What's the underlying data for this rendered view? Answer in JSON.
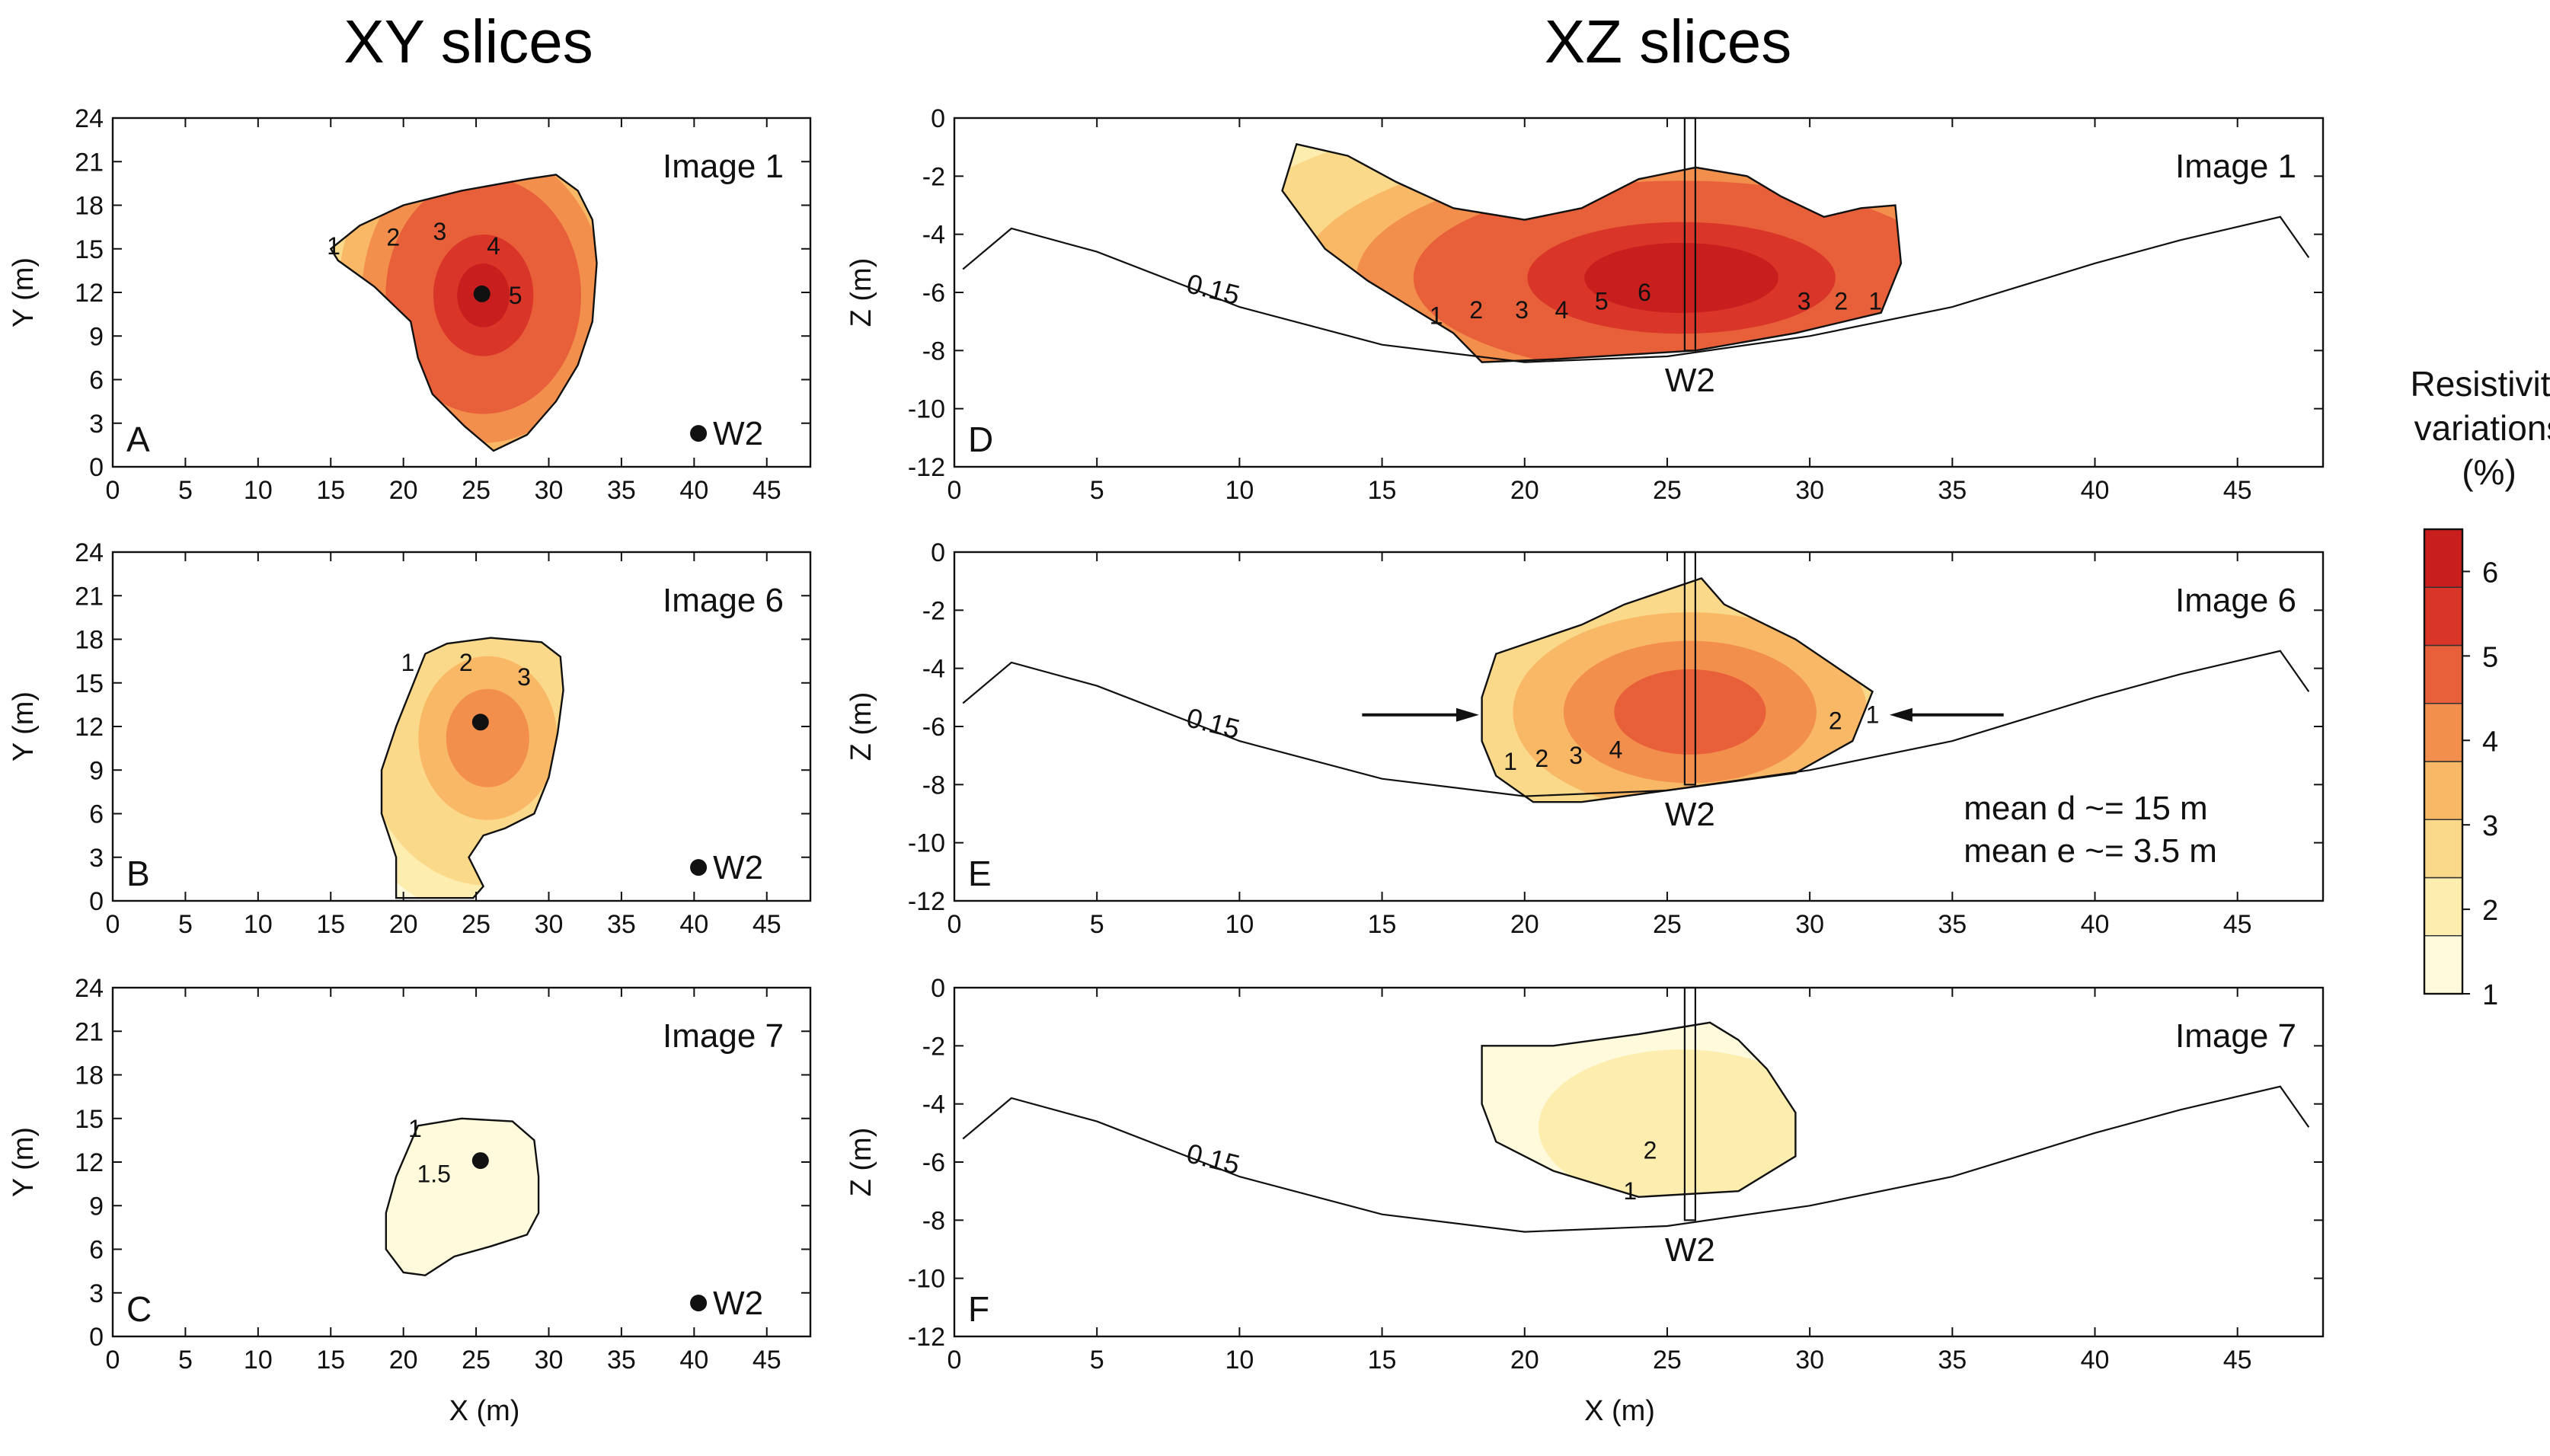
{
  "figure": {
    "xy_heading": "XY slices",
    "xz_heading": "XZ slices"
  },
  "colorbar": {
    "title_lines": [
      "Resistivity",
      "variations",
      "(%)"
    ],
    "ticks": [
      "1",
      "2",
      "3",
      "4",
      "5",
      "6"
    ],
    "min": 1,
    "max": 6.5,
    "colors": [
      "#fffadc",
      "#fdeeb0",
      "#fbd98a",
      "#f8b866",
      "#f38f4d",
      "#e8603a",
      "#d93528",
      "#c81e1e"
    ]
  },
  "chart_data": [
    {
      "id": "A",
      "type": "contour",
      "title": "Image 1",
      "panel_label": "A",
      "xlabel": "",
      "ylabel": "Y (m)",
      "xlim": [
        0,
        48
      ],
      "ylim": [
        0,
        24
      ],
      "xticks": [
        "0",
        "5",
        "10",
        "15",
        "20",
        "25",
        "30",
        "35",
        "40",
        "45"
      ],
      "yticks": [
        "0",
        "3",
        "6",
        "9",
        "12",
        "15",
        "18",
        "21",
        "24"
      ],
      "outline": [
        [
          15,
          15
        ],
        [
          17,
          16.6
        ],
        [
          20,
          18
        ],
        [
          24,
          19
        ],
        [
          28.5,
          19.8
        ],
        [
          30.5,
          20.1
        ],
        [
          32,
          19
        ],
        [
          33,
          17
        ],
        [
          33.3,
          14
        ],
        [
          33,
          10
        ],
        [
          32,
          7
        ],
        [
          30.5,
          4.5
        ],
        [
          28.5,
          2.2
        ],
        [
          26.2,
          1.1
        ],
        [
          24.2,
          2.8
        ],
        [
          22,
          5
        ],
        [
          21,
          7.5
        ],
        [
          20.5,
          10
        ],
        [
          18,
          12.4
        ],
        [
          15.5,
          14.2
        ]
      ],
      "center": [
        25.5,
        11.8
      ],
      "extent": [
        7,
        8.5
      ],
      "peak": 6.2,
      "contour_labels": [
        {
          "text": "1",
          "x": 15.2,
          "y": 15.2
        },
        {
          "text": "2",
          "x": 19.3,
          "y": 15.8
        },
        {
          "text": "3",
          "x": 22.5,
          "y": 16.2
        },
        {
          "text": "4",
          "x": 26.2,
          "y": 15.2
        },
        {
          "text": "5",
          "x": 27.7,
          "y": 11.8
        }
      ],
      "well_marker": [
        25.4,
        11.9
      ],
      "legend_marker": "W2",
      "well_line": false
    },
    {
      "id": "B",
      "type": "contour",
      "title": "Image 6",
      "panel_label": "B",
      "xlabel": "",
      "ylabel": "Y (m)",
      "xlim": [
        0,
        48
      ],
      "ylim": [
        0,
        24
      ],
      "xticks": [
        "0",
        "5",
        "10",
        "15",
        "20",
        "25",
        "30",
        "35",
        "40",
        "45"
      ],
      "yticks": [
        "0",
        "3",
        "6",
        "9",
        "12",
        "15",
        "18",
        "21",
        "24"
      ],
      "outline": [
        [
          19.5,
          0.2
        ],
        [
          19.5,
          3
        ],
        [
          18.5,
          6
        ],
        [
          18.5,
          9
        ],
        [
          19.5,
          12
        ],
        [
          20.5,
          14.5
        ],
        [
          21.5,
          17
        ],
        [
          23,
          17.7
        ],
        [
          26,
          18.1
        ],
        [
          29.5,
          17.8
        ],
        [
          30.8,
          16.8
        ],
        [
          31,
          14.5
        ],
        [
          30.6,
          11.5
        ],
        [
          30,
          8.5
        ],
        [
          29,
          6
        ],
        [
          27,
          5
        ],
        [
          25.5,
          4.5
        ],
        [
          24.5,
          3
        ],
        [
          25.5,
          1
        ],
        [
          24.8,
          0.2
        ],
        [
          22.5,
          0.2
        ]
      ],
      "center": [
        25.8,
        11.2
      ],
      "extent": [
        5.5,
        6.5
      ],
      "peak": 4.4,
      "contour_labels": [
        {
          "text": "1",
          "x": 20.3,
          "y": 16.4
        },
        {
          "text": "2",
          "x": 24.3,
          "y": 16.4
        },
        {
          "text": "3",
          "x": 28.3,
          "y": 15.4
        }
      ],
      "well_marker": [
        25.3,
        12.3
      ],
      "legend_marker": "W2",
      "well_line": false
    },
    {
      "id": "C",
      "type": "contour",
      "title": "Image 7",
      "panel_label": "C",
      "xlabel": "X (m)",
      "ylabel": "Y (m)",
      "xlim": [
        0,
        48
      ],
      "ylim": [
        0,
        24
      ],
      "xticks": [
        "0",
        "5",
        "10",
        "15",
        "20",
        "25",
        "30",
        "35",
        "40",
        "45"
      ],
      "yticks": [
        "0",
        "3",
        "6",
        "9",
        "12",
        "15",
        "18",
        "21",
        "24"
      ],
      "outline": [
        [
          21,
          14.5
        ],
        [
          24,
          15
        ],
        [
          27.5,
          14.8
        ],
        [
          29,
          13.5
        ],
        [
          29.3,
          11
        ],
        [
          29.3,
          8.5
        ],
        [
          28.5,
          7
        ],
        [
          26,
          6.2
        ],
        [
          23.5,
          5.5
        ],
        [
          21.5,
          4.2
        ],
        [
          20,
          4.4
        ],
        [
          18.8,
          6
        ],
        [
          18.8,
          8.5
        ],
        [
          19.5,
          11
        ]
      ],
      "center": [
        24,
        10
      ],
      "extent": [
        5,
        5
      ],
      "peak": 1.8,
      "contour_labels": [
        {
          "text": "1",
          "x": 20.8,
          "y": 14.3
        },
        {
          "text": "1.5",
          "x": 22.1,
          "y": 11.2
        }
      ],
      "well_marker": [
        25.3,
        12.1
      ],
      "legend_marker": "W2",
      "well_line": false
    },
    {
      "id": "D",
      "type": "contour",
      "title": "Image 1",
      "panel_label": "D",
      "xlabel": "",
      "ylabel": "Z (m)",
      "xlim": [
        0,
        48
      ],
      "ylim": [
        -12,
        0
      ],
      "xticks": [
        "0",
        "5",
        "10",
        "15",
        "20",
        "25",
        "30",
        "35",
        "40",
        "45"
      ],
      "yticks": [
        "0",
        "-2",
        "-4",
        "-6",
        "-8",
        "-10",
        "-12"
      ],
      "outline": [
        [
          12,
          -0.9
        ],
        [
          13.8,
          -1.3
        ],
        [
          15.5,
          -2.2
        ],
        [
          17.5,
          -3.1
        ],
        [
          20,
          -3.5
        ],
        [
          22,
          -3.1
        ],
        [
          24,
          -2.1
        ],
        [
          26,
          -1.7
        ],
        [
          27.8,
          -2
        ],
        [
          29,
          -2.7
        ],
        [
          30.5,
          -3.4
        ],
        [
          31.8,
          -3.1
        ],
        [
          33,
          -3
        ],
        [
          33.2,
          -5
        ],
        [
          32.5,
          -6.7
        ],
        [
          29.5,
          -7.4
        ],
        [
          26,
          -8
        ],
        [
          21,
          -8.3
        ],
        [
          18.5,
          -8.4
        ],
        [
          17.5,
          -7.4
        ],
        [
          16,
          -6.5
        ],
        [
          14.5,
          -5.6
        ],
        [
          13,
          -4.5
        ],
        [
          11.5,
          -2.5
        ]
      ],
      "center": [
        25.5,
        -5.5
      ],
      "extent": [
        9,
        3.2
      ],
      "peak": 6.5,
      "secondary": {
        "center": [
          13.5,
          -2.8
        ],
        "extent": [
          2.5,
          1.3
        ],
        "peak": 3.0
      },
      "contour_labels": [
        {
          "text": "1",
          "x": 16.9,
          "y": -6.8
        },
        {
          "text": "2",
          "x": 18.3,
          "y": -6.6
        },
        {
          "text": "3",
          "x": 19.9,
          "y": -6.6
        },
        {
          "text": "4",
          "x": 21.3,
          "y": -6.6
        },
        {
          "text": "5",
          "x": 22.7,
          "y": -6.3
        },
        {
          "text": "6",
          "x": 24.2,
          "y": -6
        },
        {
          "text": "3",
          "x": 29.8,
          "y": -6.3
        },
        {
          "text": "2",
          "x": 31.1,
          "y": -6.3
        },
        {
          "text": "1",
          "x": 32.3,
          "y": -6.3
        }
      ],
      "well_label": "W2",
      "well_line": true,
      "isoline_label": "0.15",
      "isoline": [
        [
          0.3,
          -5.2
        ],
        [
          2,
          -3.8
        ],
        [
          5,
          -4.6
        ],
        [
          10,
          -6.5
        ],
        [
          15,
          -7.8
        ],
        [
          20,
          -8.4
        ],
        [
          25,
          -8.2
        ],
        [
          30,
          -7.5
        ],
        [
          35,
          -6.5
        ],
        [
          40,
          -5
        ],
        [
          43,
          -4.2
        ],
        [
          46.5,
          -3.4
        ],
        [
          47.5,
          -4.8
        ]
      ],
      "arrows": false,
      "annotations": []
    },
    {
      "id": "E",
      "type": "contour",
      "title": "Image 6",
      "panel_label": "E",
      "xlabel": "",
      "ylabel": "Z (m)",
      "xlim": [
        0,
        48
      ],
      "ylim": [
        -12,
        0
      ],
      "xticks": [
        "0",
        "5",
        "10",
        "15",
        "20",
        "25",
        "30",
        "35",
        "40",
        "45"
      ],
      "yticks": [
        "0",
        "-2",
        "-4",
        "-6",
        "-8",
        "-10",
        "-12"
      ],
      "outline": [
        [
          19,
          -3.5
        ],
        [
          22,
          -2.5
        ],
        [
          23.5,
          -1.8
        ],
        [
          26.2,
          -0.9
        ],
        [
          27,
          -1.8
        ],
        [
          29.5,
          -3
        ],
        [
          32.2,
          -4.8
        ],
        [
          31.5,
          -6.5
        ],
        [
          29.5,
          -7.6
        ],
        [
          26.5,
          -8
        ],
        [
          22,
          -8.6
        ],
        [
          20.3,
          -8.6
        ],
        [
          19,
          -7.7
        ],
        [
          18.5,
          -6.5
        ],
        [
          18.5,
          -5
        ]
      ],
      "center": [
        25.8,
        -5.5
      ],
      "extent": [
        5.8,
        3.2
      ],
      "peak": 4.9,
      "contour_labels": [
        {
          "text": "1",
          "x": 19.5,
          "y": -7.2
        },
        {
          "text": "2",
          "x": 20.6,
          "y": -7.1
        },
        {
          "text": "3",
          "x": 21.8,
          "y": -7
        },
        {
          "text": "4",
          "x": 23.2,
          "y": -6.8
        },
        {
          "text": "2",
          "x": 30.9,
          "y": -5.8
        },
        {
          "text": "1",
          "x": 32.2,
          "y": -5.6
        }
      ],
      "well_label": "W2",
      "well_line": true,
      "isoline_label": "0.15",
      "isoline": [
        [
          0.3,
          -5.2
        ],
        [
          2,
          -3.8
        ],
        [
          5,
          -4.6
        ],
        [
          10,
          -6.5
        ],
        [
          15,
          -7.8
        ],
        [
          20,
          -8.4
        ],
        [
          25,
          -8.2
        ],
        [
          30,
          -7.5
        ],
        [
          35,
          -6.5
        ],
        [
          40,
          -5
        ],
        [
          43,
          -4.2
        ],
        [
          46.5,
          -3.4
        ],
        [
          47.5,
          -4.8
        ]
      ],
      "arrows": true,
      "annotations": [
        "mean d ~= 15 m",
        "mean e ~= 3.5 m"
      ]
    },
    {
      "id": "F",
      "type": "contour",
      "title": "Image 7",
      "panel_label": "F",
      "xlabel": "X (m)",
      "ylabel": "Z (m)",
      "xlim": [
        0,
        48
      ],
      "ylim": [
        -12,
        0
      ],
      "xticks": [
        "0",
        "5",
        "10",
        "15",
        "20",
        "25",
        "30",
        "35",
        "40",
        "45"
      ],
      "yticks": [
        "0",
        "-2",
        "-4",
        "-6",
        "-8",
        "-10",
        "-12"
      ],
      "outline": [
        [
          18.5,
          -2
        ],
        [
          21,
          -2
        ],
        [
          24,
          -1.6
        ],
        [
          26.5,
          -1.2
        ],
        [
          27.5,
          -1.8
        ],
        [
          28.5,
          -2.8
        ],
        [
          29.5,
          -4.3
        ],
        [
          29.5,
          -5.8
        ],
        [
          27.5,
          -7
        ],
        [
          24,
          -7.2
        ],
        [
          21,
          -6.3
        ],
        [
          19,
          -5.3
        ],
        [
          18.5,
          -4
        ]
      ],
      "center": [
        25.5,
        -4.8
      ],
      "extent": [
        4.5,
        2.4
      ],
      "peak": 2.4,
      "contour_labels": [
        {
          "text": "2",
          "x": 24.4,
          "y": -5.6
        },
        {
          "text": "1",
          "x": 23.7,
          "y": -7
        }
      ],
      "well_label": "W2",
      "well_line": true,
      "isoline_label": "0.15",
      "isoline": [
        [
          0.3,
          -5.2
        ],
        [
          2,
          -3.8
        ],
        [
          5,
          -4.6
        ],
        [
          10,
          -6.5
        ],
        [
          15,
          -7.8
        ],
        [
          20,
          -8.4
        ],
        [
          25,
          -8.2
        ],
        [
          30,
          -7.5
        ],
        [
          35,
          -6.5
        ],
        [
          40,
          -5
        ],
        [
          43,
          -4.2
        ],
        [
          46.5,
          -3.4
        ],
        [
          47.5,
          -4.8
        ]
      ],
      "arrows": false,
      "annotations": []
    }
  ]
}
